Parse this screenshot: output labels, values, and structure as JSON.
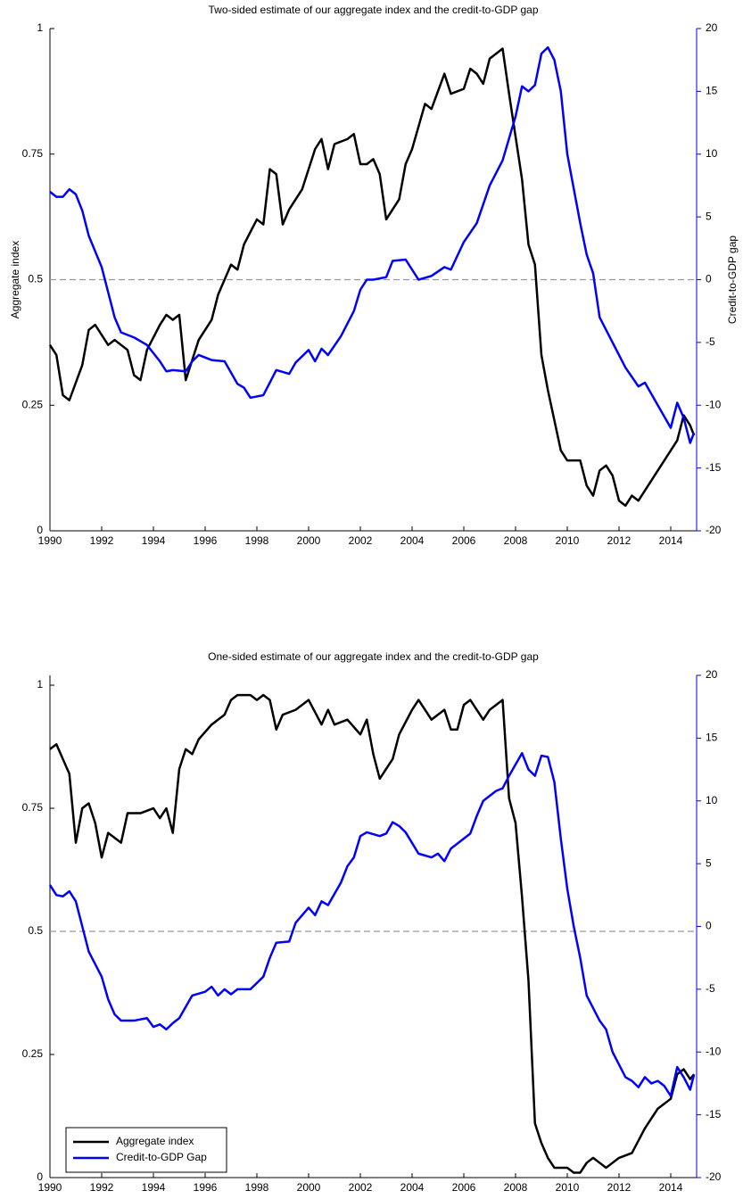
{
  "chart_data": [
    {
      "type": "line",
      "title": "Two-sided estimate of our aggregate index and the credit-to-GDP gap",
      "ylabel": "Aggregate index",
      "y2label": "Credit-to-GDP gap",
      "xlim": [
        1990,
        2015
      ],
      "xticks": [
        1990,
        1992,
        1994,
        1996,
        1998,
        2000,
        2002,
        2004,
        2006,
        2008,
        2010,
        2012,
        2014
      ],
      "ylim": [
        0,
        1
      ],
      "yticks": [
        0,
        0.25,
        0.5,
        0.75,
        1
      ],
      "y2lim": [
        -20,
        20
      ],
      "y2ticks": [
        -20,
        -15,
        -10,
        -5,
        0,
        5,
        10,
        15,
        20
      ],
      "hline": 0.5,
      "legend": false,
      "series": [
        {
          "color": "#000000",
          "x": [
            1990,
            1990.25,
            1990.5,
            1990.75,
            1991.25,
            1991.5,
            1991.75,
            1992.25,
            1992.5,
            1993,
            1993.25,
            1993.5,
            1993.75,
            1994.25,
            1994.5,
            1994.75,
            1995,
            1995.25,
            1995.5,
            1995.75,
            1996.25,
            1996.5,
            1997,
            1997.25,
            1997.5,
            1998,
            1998.25,
            1998.5,
            1998.75,
            1999,
            1999.25,
            1999.75,
            2000.25,
            2000.5,
            2000.75,
            2001,
            2001.5,
            2001.75,
            2002,
            2002.25,
            2002.5,
            2002.75,
            2003,
            2003.5,
            2003.75,
            2004,
            2004.5,
            2004.75,
            2005.25,
            2005.5,
            2006,
            2006.25,
            2006.5,
            2006.75,
            2007,
            2007.25,
            2007.5,
            2007.75,
            2008.25,
            2008.5,
            2008.75,
            2009,
            2009.25,
            2009.5,
            2009.75,
            2010,
            2010.5,
            2010.75,
            2011,
            2011.25,
            2011.5,
            2011.75,
            2012,
            2012.25,
            2012.5,
            2012.75,
            2013,
            2013.5,
            2014,
            2014.25,
            2014.5,
            2014.75,
            2014.9
          ],
          "values": [
            0.37,
            0.35,
            0.27,
            0.26,
            0.33,
            0.4,
            0.41,
            0.37,
            0.38,
            0.36,
            0.31,
            0.3,
            0.36,
            0.41,
            0.43,
            0.42,
            0.43,
            0.3,
            0.34,
            0.38,
            0.42,
            0.47,
            0.53,
            0.52,
            0.57,
            0.62,
            0.61,
            0.72,
            0.71,
            0.61,
            0.64,
            0.68,
            0.76,
            0.78,
            0.72,
            0.77,
            0.78,
            0.79,
            0.73,
            0.73,
            0.74,
            0.71,
            0.62,
            0.66,
            0.73,
            0.76,
            0.85,
            0.84,
            0.91,
            0.87,
            0.88,
            0.92,
            0.91,
            0.89,
            0.94,
            0.95,
            0.96,
            0.87,
            0.7,
            0.57,
            0.53,
            0.35,
            0.28,
            0.22,
            0.16,
            0.14,
            0.14,
            0.09,
            0.07,
            0.12,
            0.13,
            0.11,
            0.06,
            0.05,
            0.07,
            0.06,
            0.08,
            0.12,
            0.16,
            0.18,
            0.23,
            0.21,
            0.19
          ]
        },
        {
          "color": "#0000ff",
          "axis": "y2",
          "x": [
            1990,
            1990.25,
            1990.5,
            1990.75,
            1991,
            1991.25,
            1991.5,
            1992,
            1992.25,
            1992.5,
            1992.75,
            1993.25,
            1993.75,
            1994.25,
            1994.5,
            1994.75,
            1995.25,
            1995.5,
            1995.75,
            1996.25,
            1996.75,
            1997.25,
            1997.5,
            1997.75,
            1998.25,
            1998.5,
            1998.75,
            1999.25,
            1999.5,
            2000,
            2000.25,
            2000.5,
            2000.75,
            2001.25,
            2001.75,
            2002,
            2002.25,
            2002.5,
            2003,
            2003.25,
            2003.75,
            2004.25,
            2004.75,
            2005.25,
            2005.5,
            2006,
            2006.5,
            2007,
            2007.5,
            2008,
            2008.25,
            2008.5,
            2008.75,
            2009,
            2009.25,
            2009.5,
            2009.75,
            2010,
            2010.5,
            2010.75,
            2011,
            2011.25,
            2011.75,
            2012.25,
            2012.75,
            2013,
            2013.5,
            2014,
            2014.25,
            2014.5,
            2014.75,
            2014.9
          ],
          "values": [
            7,
            6.6,
            6.6,
            7.2,
            6.8,
            5.5,
            3.5,
            1,
            -1,
            -3,
            -4.2,
            -4.6,
            -5.2,
            -6.5,
            -7.3,
            -7.2,
            -7.3,
            -6.5,
            -6,
            -6.4,
            -6.5,
            -8.3,
            -8.6,
            -9.4,
            -9.2,
            -8.2,
            -7.2,
            -7.5,
            -6.6,
            -5.6,
            -6.5,
            -5.5,
            -6,
            -4.5,
            -2.5,
            -0.8,
            0,
            0,
            0.2,
            1.5,
            1.6,
            0,
            0.3,
            1,
            0.8,
            3,
            4.5,
            7.5,
            9.5,
            13,
            15.4,
            15,
            15.5,
            18,
            18.5,
            17.5,
            15,
            10,
            4.5,
            2,
            0.5,
            -3,
            -5,
            -7,
            -8.5,
            -8.2,
            -10,
            -11.8,
            -9.8,
            -11,
            -13,
            -12.2
          ]
        }
      ]
    },
    {
      "type": "line",
      "title": "One-sided estimate of our aggregate index and the credit-to-GDP gap",
      "xlim": [
        1990,
        2015
      ],
      "xticks": [
        1990,
        1992,
        1994,
        1996,
        1998,
        2000,
        2002,
        2004,
        2006,
        2008,
        2010,
        2012,
        2014
      ],
      "ylim": [
        0,
        1.02
      ],
      "yticks": [
        0,
        0.25,
        0.5,
        0.75,
        1
      ],
      "y2lim": [
        -20,
        20
      ],
      "y2ticks": [
        -20,
        -15,
        -10,
        -5,
        0,
        5,
        10,
        15,
        20
      ],
      "hline": 0.5,
      "legend": "lower left",
      "series": [
        {
          "name": "Aggregate index",
          "color": "#000000",
          "x": [
            1990,
            1990.25,
            1990.5,
            1990.75,
            1991,
            1991.25,
            1991.5,
            1991.75,
            1992,
            1992.25,
            1992.5,
            1992.75,
            1993,
            1993.5,
            1994,
            1994.25,
            1994.5,
            1994.75,
            1995,
            1995.25,
            1995.5,
            1995.75,
            1996.25,
            1996.75,
            1997,
            1997.25,
            1997.75,
            1998,
            1998.25,
            1998.5,
            1998.75,
            1999,
            1999.5,
            2000,
            2000.5,
            2000.75,
            2001,
            2001.5,
            2002,
            2002.25,
            2002.5,
            2002.75,
            2003,
            2003.25,
            2003.5,
            2004,
            2004.25,
            2004.75,
            2005.25,
            2005.5,
            2005.75,
            2006,
            2006.25,
            2006.75,
            2007,
            2007.25,
            2007.5,
            2007.75,
            2008,
            2008.25,
            2008.5,
            2008.75,
            2009,
            2009.25,
            2009.5,
            2010,
            2010.25,
            2010.5,
            2010.75,
            2011,
            2011.25,
            2011.5,
            2011.75,
            2012,
            2012.5,
            2013,
            2013.5,
            2014,
            2014.25,
            2014.5,
            2014.75,
            2014.9
          ],
          "values": [
            0.87,
            0.88,
            0.85,
            0.82,
            0.68,
            0.75,
            0.76,
            0.72,
            0.65,
            0.7,
            0.69,
            0.68,
            0.74,
            0.74,
            0.75,
            0.73,
            0.75,
            0.7,
            0.83,
            0.87,
            0.86,
            0.89,
            0.92,
            0.94,
            0.97,
            0.98,
            0.98,
            0.97,
            0.98,
            0.97,
            0.91,
            0.94,
            0.95,
            0.97,
            0.92,
            0.95,
            0.92,
            0.93,
            0.9,
            0.93,
            0.86,
            0.81,
            0.83,
            0.85,
            0.9,
            0.95,
            0.97,
            0.93,
            0.95,
            0.91,
            0.91,
            0.96,
            0.97,
            0.93,
            0.95,
            0.96,
            0.97,
            0.77,
            0.72,
            0.57,
            0.4,
            0.11,
            0.07,
            0.04,
            0.02,
            0.02,
            0.01,
            0.01,
            0.03,
            0.04,
            0.03,
            0.02,
            0.03,
            0.04,
            0.05,
            0.1,
            0.14,
            0.16,
            0.21,
            0.22,
            0.2,
            0.21
          ]
        },
        {
          "name": "Credit-to-GDP Gap",
          "color": "#0000ff",
          "axis": "y2",
          "x": [
            1990,
            1990.25,
            1990.5,
            1990.75,
            1991,
            1991.25,
            1991.5,
            1992,
            1992.25,
            1992.5,
            1992.75,
            1993.25,
            1993.75,
            1994,
            1994.25,
            1994.5,
            1994.75,
            1995,
            1995.5,
            1996,
            1996.25,
            1996.5,
            1996.75,
            1997,
            1997.25,
            1997.75,
            1998.25,
            1998.5,
            1998.75,
            1999.25,
            1999.5,
            2000,
            2000.25,
            2000.5,
            2000.75,
            2001.25,
            2001.5,
            2001.75,
            2002,
            2002.25,
            2002.75,
            2003,
            2003.25,
            2003.5,
            2003.75,
            2004.25,
            2004.75,
            2005,
            2005.25,
            2005.5,
            2006,
            2006.25,
            2006.5,
            2006.75,
            2007.25,
            2007.5,
            2007.75,
            2008.25,
            2008.5,
            2008.75,
            2009,
            2009.25,
            2009.5,
            2009.75,
            2010,
            2010.25,
            2010.5,
            2010.75,
            2011.25,
            2011.5,
            2011.75,
            2012,
            2012.25,
            2012.5,
            2012.75,
            2013,
            2013.25,
            2013.5,
            2013.75,
            2014,
            2014.25,
            2014.5,
            2014.75,
            2014.9
          ],
          "values": [
            3.3,
            2.5,
            2.4,
            2.8,
            2,
            0,
            -2,
            -4,
            -5.8,
            -7,
            -7.5,
            -7.5,
            -7.3,
            -8,
            -7.8,
            -8.2,
            -7.7,
            -7.3,
            -5.5,
            -5.2,
            -4.8,
            -5.5,
            -5,
            -5.4,
            -5,
            -5,
            -4,
            -2.5,
            -1.3,
            -1.2,
            0.3,
            1.5,
            0.9,
            2,
            1.7,
            3.5,
            4.8,
            5.5,
            7.2,
            7.5,
            7.2,
            7.4,
            8.3,
            8,
            7.5,
            5.8,
            5.5,
            5.8,
            5.2,
            6.2,
            7,
            7.4,
            8.8,
            10,
            10.8,
            11,
            12,
            13.8,
            12.5,
            12,
            13.6,
            13.5,
            11.5,
            7,
            3,
            0,
            -2.5,
            -5.5,
            -7.5,
            -8.2,
            -10,
            -11,
            -12,
            -12.3,
            -12.8,
            -12,
            -12.5,
            -12.3,
            -12.7,
            -13.5,
            -11.2,
            -12,
            -13,
            -11.8
          ]
        }
      ]
    }
  ]
}
